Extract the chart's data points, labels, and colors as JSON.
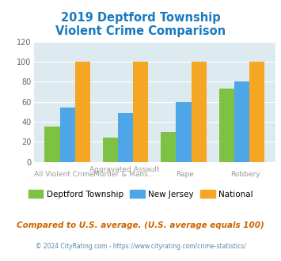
{
  "title": "2019 Deptford Township\nViolent Crime Comparison",
  "deptford": [
    35,
    24,
    30,
    73
  ],
  "new_jersey": [
    54,
    49,
    60,
    80
  ],
  "national": [
    100,
    100,
    100,
    100
  ],
  "colors": {
    "deptford": "#7dc242",
    "new_jersey": "#4da6e8",
    "national": "#f5a623"
  },
  "ylim": [
    0,
    120
  ],
  "yticks": [
    0,
    20,
    40,
    60,
    80,
    100,
    120
  ],
  "title_color": "#1a7abf",
  "bg_color": "#ddeaf0",
  "legend_labels": [
    "Deptford Township",
    "New Jersey",
    "National"
  ],
  "x_top_labels": [
    "",
    "Aggravated Assault",
    "",
    ""
  ],
  "x_bot_labels": [
    "All Violent Crime",
    "Murder & Mans...",
    "Rape",
    "Robbery"
  ],
  "footnote1": "Compared to U.S. average. (U.S. average equals 100)",
  "footnote2": "© 2024 CityRating.com - https://www.cityrating.com/crime-statistics/",
  "footnote1_color": "#cc6600",
  "footnote2_color": "#5588aa"
}
